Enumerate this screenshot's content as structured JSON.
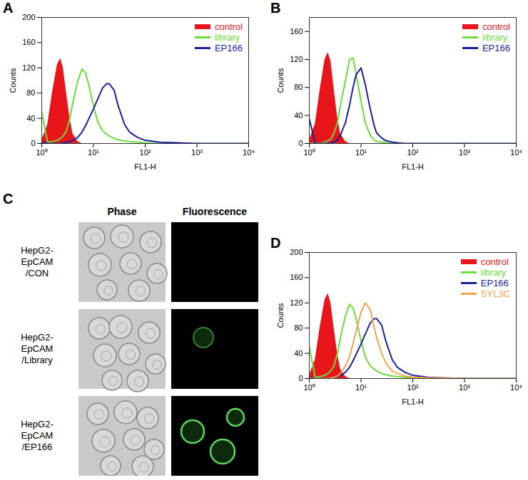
{
  "chart_data": [
    {
      "type": "line",
      "title": "A",
      "x_label": "FL1-H",
      "y_label": "Counts",
      "log": "x",
      "xlim": [
        1,
        10000
      ],
      "xticks": [
        {
          "value": 1,
          "label": "10⁰"
        },
        {
          "value": 10,
          "label": "10¹"
        },
        {
          "value": 100,
          "label": "10²"
        },
        {
          "value": 1000,
          "label": "10³"
        },
        {
          "value": 10000,
          "label": "10⁴"
        }
      ],
      "ylim": [
        0,
        200
      ],
      "yticks": [
        0,
        40,
        80,
        120,
        160,
        200
      ],
      "legend": "top-right",
      "x": [
        1,
        1.3,
        1.6,
        2,
        2.3,
        2.6,
        3,
        3.5,
        4,
        5,
        6,
        7,
        8,
        10,
        12,
        15,
        18,
        20,
        25,
        30,
        40,
        50,
        70,
        100,
        200,
        1000,
        10000
      ],
      "series": [
        {
          "name": "control",
          "type": "area",
          "color": "#e8161b",
          "values": [
            5,
            30,
            80,
            125,
            135,
            120,
            80,
            40,
            15,
            3,
            0,
            0,
            0,
            0,
            0,
            0,
            0,
            0,
            0,
            0,
            0,
            0,
            0,
            0,
            0,
            0,
            0
          ]
        },
        {
          "name": "library",
          "type": "line",
          "color": "#6cdc3c",
          "values": [
            50,
            2,
            3,
            5,
            8,
            12,
            20,
            40,
            65,
            100,
            118,
            112,
            95,
            60,
            35,
            20,
            15,
            12,
            8,
            6,
            4,
            3,
            2,
            1,
            0,
            0,
            0
          ]
        },
        {
          "name": "EP166",
          "type": "line",
          "color": "#1b1f9c",
          "values": [
            2,
            0,
            0,
            0,
            0,
            1,
            2,
            3,
            5,
            10,
            18,
            28,
            38,
            55,
            70,
            88,
            95,
            95,
            85,
            60,
            30,
            18,
            10,
            5,
            2,
            0,
            0
          ]
        }
      ]
    },
    {
      "type": "line",
      "title": "B",
      "x_label": "FL1-H",
      "y_label": "Counts",
      "log": "x",
      "xlim": [
        1,
        10000
      ],
      "xticks": [
        {
          "value": 1,
          "label": "10⁰"
        },
        {
          "value": 10,
          "label": "10¹"
        },
        {
          "value": 100,
          "label": "10²"
        },
        {
          "value": 1000,
          "label": "10³"
        },
        {
          "value": 10000,
          "label": "10⁴"
        }
      ],
      "ylim": [
        0,
        180
      ],
      "yticks": [
        0,
        40,
        80,
        120,
        160
      ],
      "legend": "top-right",
      "x": [
        1,
        1.3,
        1.6,
        2,
        2.3,
        2.6,
        3,
        3.5,
        4,
        5,
        6,
        7,
        8,
        10,
        12,
        15,
        18,
        20,
        25,
        30,
        40,
        50,
        70,
        100,
        200,
        1000,
        10000
      ],
      "series": [
        {
          "name": "control",
          "type": "area",
          "color": "#e8161b",
          "values": [
            5,
            28,
            75,
            120,
            130,
            118,
            78,
            38,
            14,
            3,
            0,
            0,
            0,
            0,
            0,
            0,
            0,
            0,
            0,
            0,
            0,
            0,
            0,
            0,
            0,
            0,
            0
          ]
        },
        {
          "name": "library",
          "type": "line",
          "color": "#6cdc3c",
          "values": [
            0,
            0,
            0,
            2,
            4,
            6,
            15,
            30,
            55,
            90,
            120,
            122,
            100,
            60,
            30,
            12,
            5,
            3,
            2,
            1,
            0,
            0,
            0,
            0,
            0,
            0,
            0
          ]
        },
        {
          "name": "EP166",
          "type": "line",
          "color": "#1b1f9c",
          "values": [
            35,
            0,
            0,
            0,
            0,
            1,
            2,
            5,
            12,
            30,
            55,
            80,
            98,
            108,
            85,
            50,
            25,
            15,
            8,
            4,
            2,
            1,
            0,
            0,
            0,
            0,
            0
          ]
        }
      ]
    },
    {
      "type": "line",
      "title": "D",
      "x_label": "FL1-H",
      "y_label": "Counts",
      "log": "x",
      "xlim": [
        1,
        10000
      ],
      "xticks": [
        {
          "value": 1,
          "label": "10⁰"
        },
        {
          "value": 10,
          "label": "10¹"
        },
        {
          "value": 100,
          "label": "10²"
        },
        {
          "value": 1000,
          "label": "10³"
        },
        {
          "value": 10000,
          "label": "10⁴"
        }
      ],
      "ylim": [
        0,
        200
      ],
      "yticks": [
        0,
        40,
        80,
        120,
        160,
        200
      ],
      "legend": "top-right",
      "x": [
        1,
        1.3,
        1.6,
        2,
        2.3,
        2.6,
        3,
        3.5,
        4,
        5,
        6,
        7,
        8,
        10,
        12,
        15,
        18,
        20,
        25,
        30,
        40,
        50,
        70,
        100,
        200,
        1000,
        10000
      ],
      "series": [
        {
          "name": "control",
          "type": "area",
          "color": "#e8161b",
          "values": [
            5,
            30,
            80,
            125,
            135,
            120,
            80,
            40,
            15,
            3,
            0,
            0,
            0,
            0,
            0,
            0,
            0,
            0,
            0,
            0,
            0,
            0,
            0,
            0,
            0,
            0,
            0
          ]
        },
        {
          "name": "library",
          "type": "line",
          "color": "#6cdc3c",
          "values": [
            50,
            2,
            3,
            5,
            8,
            12,
            20,
            40,
            65,
            100,
            118,
            112,
            95,
            60,
            35,
            20,
            15,
            12,
            8,
            6,
            4,
            3,
            2,
            1,
            0,
            0,
            0
          ]
        },
        {
          "name": "EP166",
          "type": "line",
          "color": "#1b1f9c",
          "values": [
            2,
            0,
            0,
            0,
            0,
            1,
            2,
            3,
            5,
            10,
            18,
            28,
            38,
            55,
            70,
            88,
            95,
            95,
            85,
            60,
            30,
            18,
            10,
            5,
            2,
            0,
            0
          ]
        },
        {
          "name": "SYL3C",
          "type": "line",
          "color": "#f5a24c",
          "values": [
            0,
            0,
            0,
            0,
            0,
            1,
            2,
            4,
            8,
            20,
            35,
            55,
            75,
            105,
            120,
            110,
            80,
            65,
            40,
            25,
            12,
            8,
            4,
            2,
            1,
            0,
            0
          ]
        }
      ]
    }
  ],
  "image_panel": {
    "title": "C",
    "columns": [
      "Phase",
      "Fluorescence"
    ],
    "rows": [
      [
        "HepG2-",
        "EpCAM",
        "/CON"
      ],
      [
        "HepG2-",
        "EpCAM",
        "/Library"
      ],
      [
        "HepG2-",
        "EpCAM",
        "/EP166"
      ]
    ]
  }
}
